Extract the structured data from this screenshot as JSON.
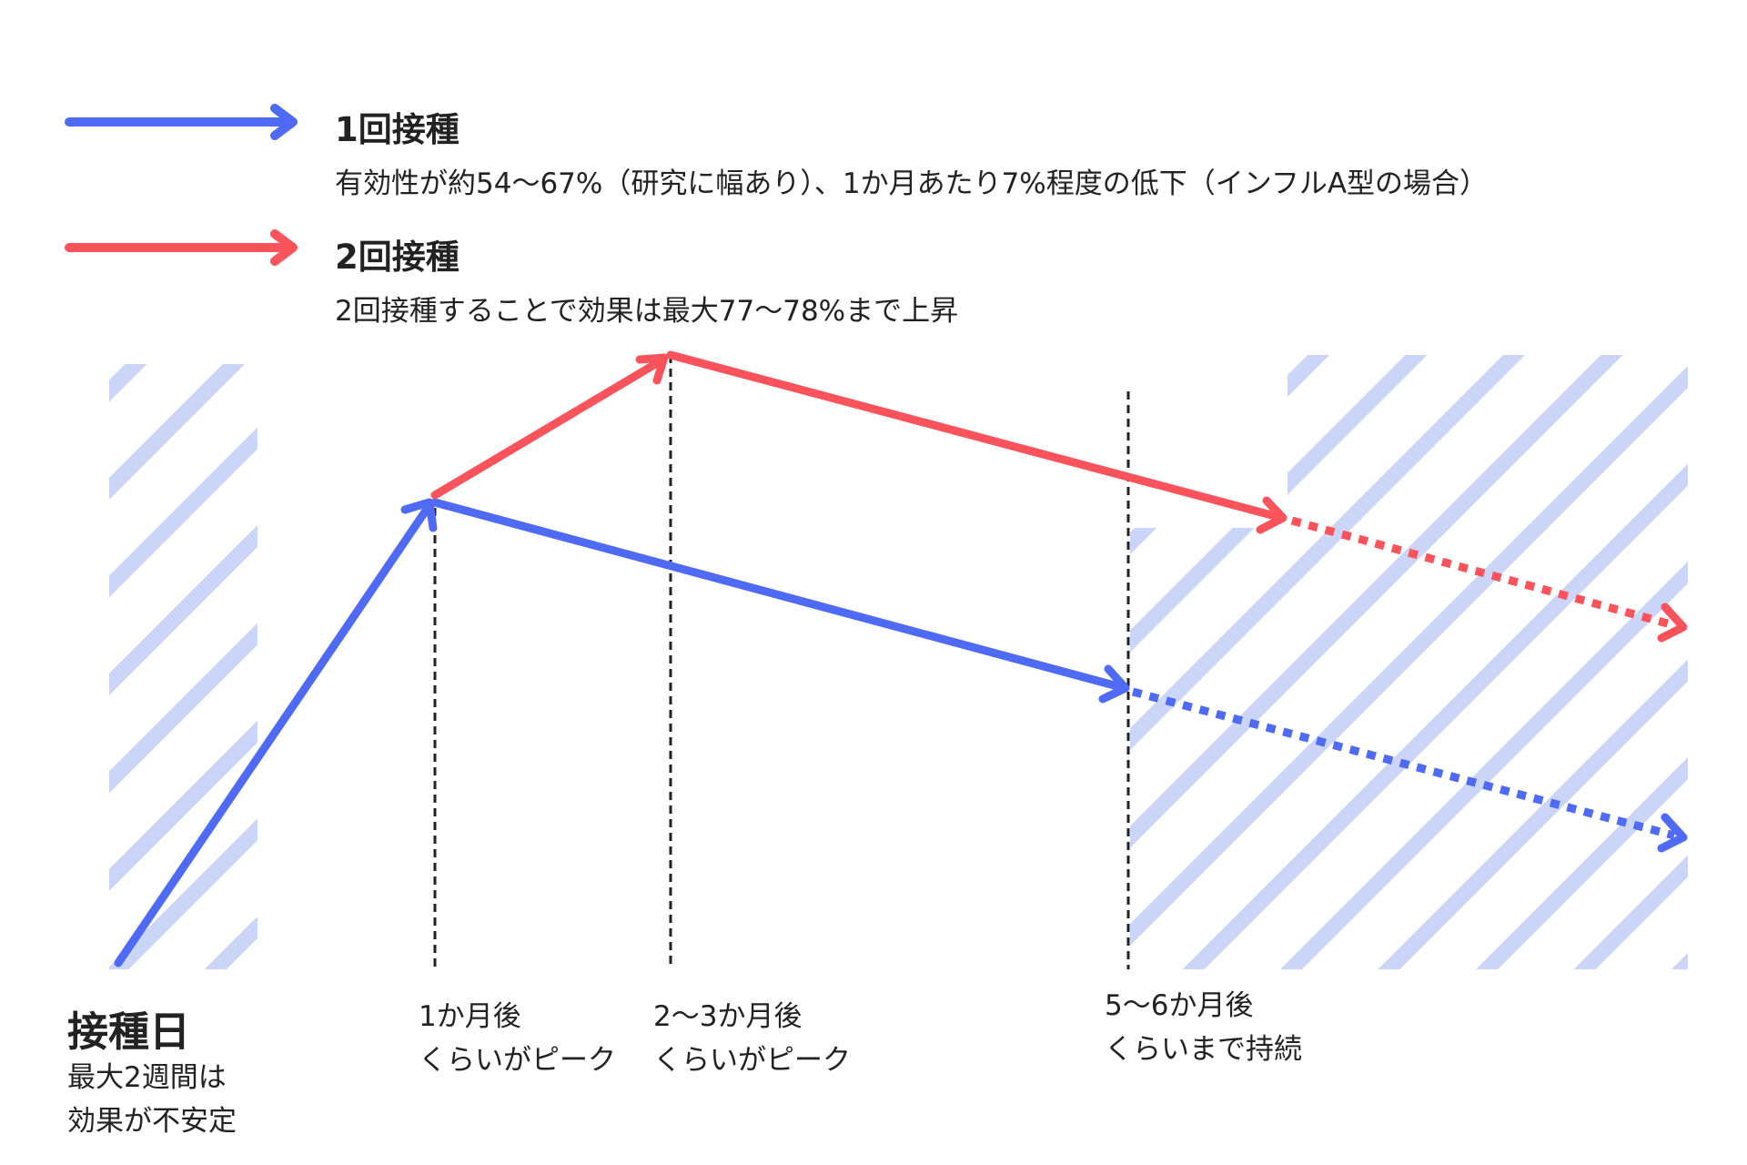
{
  "colors": {
    "blue": "#4F6BF5",
    "red": "#FB535B",
    "hatch": "#CBD5F8",
    "dash": "#222222",
    "text": "#222222"
  },
  "legend": [
    {
      "title": "1回接種",
      "desc": "有効性が約54〜67%（研究に幅あり）、1か月あたり7%程度の低下（インフルA型の場合）",
      "color": "#4F6BF5"
    },
    {
      "title": "2回接種",
      "desc": "2回接種することで効果は最大77〜78%まで上昇",
      "color": "#FB535B"
    }
  ],
  "start_label": {
    "title": "接種日",
    "lines": [
      "最大2週間は",
      "効果が不安定"
    ]
  },
  "milestones": [
    {
      "lines": [
        "1か月後",
        "くらいがピーク"
      ]
    },
    {
      "lines": [
        "2〜3か月後",
        "くらいがピーク"
      ]
    },
    {
      "lines": [
        "5〜6か月後",
        "くらいまで持続"
      ]
    }
  ]
}
